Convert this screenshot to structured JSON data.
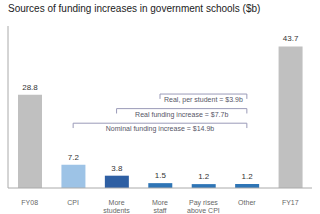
{
  "chart_data": {
    "type": "bar",
    "title": "Sources of funding increases in government schools ($b)",
    "categories": [
      "FY08",
      "CPI",
      "More\nstudents",
      "More\nstaff",
      "Pay rises\nabove CPI",
      "Other",
      "FY17"
    ],
    "values": [
      28.8,
      7.2,
      3.8,
      1.5,
      1.2,
      1.2,
      43.7
    ],
    "colors": [
      "#c0c0c0",
      "#9dc3e6",
      "#2e5fa3",
      "#2e75b6",
      "#2e75b6",
      "#2e75b6",
      "#c0c0c0"
    ],
    "ylim": [
      0,
      50
    ],
    "grid": false,
    "data_labels": true,
    "tick_labels": "x",
    "annotations": [
      {
        "text": "Real, per student = $3.9b",
        "x1": "More\nstaff",
        "x2": "Other"
      },
      {
        "text": "Real funding increase = $7.7b",
        "x1": "More\nstudents",
        "x2": "Other"
      },
      {
        "text": "Nominal funding increase = $14.9b",
        "x1": "CPI",
        "x2": "Other"
      }
    ]
  }
}
